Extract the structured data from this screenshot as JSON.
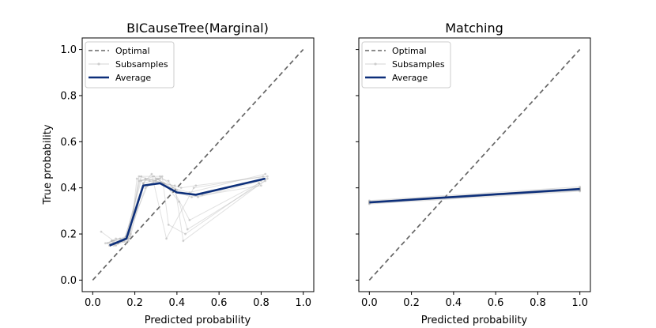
{
  "colors": {
    "optimal": "#666666",
    "subsample": "#a8a8a8",
    "average": "#0d2f7a"
  },
  "chart_data": [
    {
      "type": "line",
      "title": "BICauseTree(Marginal)",
      "xlabel": "Predicted probability",
      "ylabel": "True probability",
      "xlim": [
        -0.05,
        1.05
      ],
      "ylim": [
        -0.05,
        1.05
      ],
      "xticks": [
        "0.0",
        "0.2",
        "0.4",
        "0.6",
        "0.8",
        "1.0"
      ],
      "yticks": [
        "0.0",
        "0.2",
        "0.4",
        "0.6",
        "0.8",
        "1.0"
      ],
      "legend": {
        "position": "top-left",
        "entries": [
          "Optimal",
          "Subsamples",
          "Average"
        ]
      },
      "series": [
        {
          "name": "Optimal",
          "style": "dashed",
          "x": [
            0.0,
            1.0
          ],
          "y": [
            0.0,
            1.0
          ]
        },
        {
          "name": "Subsamples",
          "style": "faint",
          "lines": [
            {
              "x": [
                0.04,
                0.1,
                0.16,
                0.23,
                0.32,
                0.4,
                0.5,
                0.8
              ],
              "y": [
                0.21,
                0.17,
                0.19,
                0.45,
                0.45,
                0.39,
                0.36,
                0.43
              ]
            },
            {
              "x": [
                0.08,
                0.12,
                0.17,
                0.22,
                0.3,
                0.38,
                0.46,
                0.82
              ],
              "y": [
                0.15,
                0.16,
                0.17,
                0.43,
                0.44,
                0.4,
                0.38,
                0.46
              ]
            },
            {
              "x": [
                0.09,
                0.13,
                0.16,
                0.25,
                0.33,
                0.36,
                0.44,
                0.79
              ],
              "y": [
                0.17,
                0.17,
                0.16,
                0.4,
                0.45,
                0.24,
                0.2,
                0.42
              ]
            },
            {
              "x": [
                0.07,
                0.11,
                0.15,
                0.24,
                0.28,
                0.35,
                0.48,
                0.81
              ],
              "y": [
                0.16,
                0.18,
                0.18,
                0.42,
                0.46,
                0.18,
                0.4,
                0.45
              ]
            },
            {
              "x": [
                0.1,
                0.14,
                0.18,
                0.21,
                0.27,
                0.39,
                0.43,
                0.83
              ],
              "y": [
                0.16,
                0.17,
                0.2,
                0.44,
                0.43,
                0.41,
                0.17,
                0.44
              ]
            },
            {
              "x": [
                0.08,
                0.12,
                0.16,
                0.26,
                0.31,
                0.37,
                0.47,
                0.8
              ],
              "y": [
                0.15,
                0.16,
                0.19,
                0.41,
                0.44,
                0.39,
                0.36,
                0.41
              ]
            },
            {
              "x": [
                0.09,
                0.11,
                0.17,
                0.22,
                0.34,
                0.41,
                0.45,
                0.82
              ],
              "y": [
                0.17,
                0.15,
                0.18,
                0.45,
                0.42,
                0.34,
                0.22,
                0.43
              ]
            },
            {
              "x": [
                0.06,
                0.13,
                0.15,
                0.23,
                0.29,
                0.4,
                0.52,
                0.81
              ],
              "y": [
                0.16,
                0.18,
                0.17,
                0.43,
                0.45,
                0.38,
                0.37,
                0.44
              ]
            },
            {
              "x": [
                0.1,
                0.12,
                0.18,
                0.24,
                0.32,
                0.36,
                0.46,
                0.79
              ],
              "y": [
                0.15,
                0.16,
                0.19,
                0.42,
                0.44,
                0.43,
                0.26,
                0.42
              ]
            },
            {
              "x": [
                0.08,
                0.14,
                0.16,
                0.25,
                0.3,
                0.42,
                0.49,
                0.83
              ],
              "y": [
                0.16,
                0.17,
                0.18,
                0.44,
                0.43,
                0.4,
                0.41,
                0.45
              ]
            }
          ]
        },
        {
          "name": "Average",
          "style": "bold",
          "x": [
            0.08,
            0.16,
            0.24,
            0.32,
            0.4,
            0.49,
            0.82
          ],
          "y": [
            0.15,
            0.18,
            0.41,
            0.42,
            0.38,
            0.37,
            0.44
          ]
        }
      ]
    },
    {
      "type": "line",
      "title": "Matching",
      "xlabel": "Predicted probability",
      "ylabel": "",
      "xlim": [
        -0.05,
        1.05
      ],
      "ylim": [
        -0.05,
        1.05
      ],
      "xticks": [
        "0.0",
        "0.2",
        "0.4",
        "0.6",
        "0.8",
        "1.0"
      ],
      "yticks": [],
      "legend": {
        "position": "top-left",
        "entries": [
          "Optimal",
          "Subsamples",
          "Average"
        ]
      },
      "series": [
        {
          "name": "Optimal",
          "style": "dashed",
          "x": [
            0.0,
            1.0
          ],
          "y": [
            0.0,
            1.0
          ]
        },
        {
          "name": "Subsamples",
          "style": "faint",
          "lines": [
            {
              "x": [
                0.0,
                1.0
              ],
              "y": [
                0.335,
                0.39
              ]
            },
            {
              "x": [
                0.0,
                1.0
              ],
              "y": [
                0.34,
                0.4
              ]
            },
            {
              "x": [
                0.0,
                1.0
              ],
              "y": [
                0.33,
                0.385
              ]
            },
            {
              "x": [
                0.0,
                1.0
              ],
              "y": [
                0.345,
                0.405
              ]
            },
            {
              "x": [
                0.0,
                1.0
              ],
              "y": [
                0.338,
                0.395
              ]
            },
            {
              "x": [
                0.0,
                1.0
              ],
              "y": [
                0.332,
                0.392
              ]
            },
            {
              "x": [
                0.0,
                1.0
              ],
              "y": [
                0.342,
                0.398
              ]
            },
            {
              "x": [
                0.0,
                1.0
              ],
              "y": [
                0.336,
                0.388
              ]
            }
          ]
        },
        {
          "name": "Average",
          "style": "bold",
          "x": [
            0.0,
            1.0
          ],
          "y": [
            0.337,
            0.395
          ]
        }
      ]
    }
  ]
}
